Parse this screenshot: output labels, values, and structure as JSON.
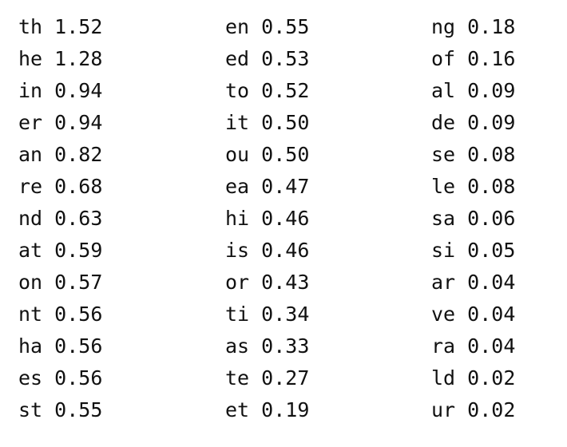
{
  "columns": [
    [
      {
        "bigram": "th",
        "freq": "1.52"
      },
      {
        "bigram": "he",
        "freq": "1.28"
      },
      {
        "bigram": "in",
        "freq": "0.94"
      },
      {
        "bigram": "er",
        "freq": "0.94"
      },
      {
        "bigram": "an",
        "freq": "0.82"
      },
      {
        "bigram": "re",
        "freq": "0.68"
      },
      {
        "bigram": "nd",
        "freq": "0.63"
      },
      {
        "bigram": "at",
        "freq": "0.59"
      },
      {
        "bigram": "on",
        "freq": "0.57"
      },
      {
        "bigram": "nt",
        "freq": "0.56"
      },
      {
        "bigram": "ha",
        "freq": "0.56"
      },
      {
        "bigram": "es",
        "freq": "0.56"
      },
      {
        "bigram": "st",
        "freq": "0.55"
      }
    ],
    [
      {
        "bigram": "en",
        "freq": "0.55"
      },
      {
        "bigram": "ed",
        "freq": "0.53"
      },
      {
        "bigram": "to",
        "freq": "0.52"
      },
      {
        "bigram": "it",
        "freq": "0.50"
      },
      {
        "bigram": "ou",
        "freq": "0.50"
      },
      {
        "bigram": "ea",
        "freq": "0.47"
      },
      {
        "bigram": "hi",
        "freq": "0.46"
      },
      {
        "bigram": "is",
        "freq": "0.46"
      },
      {
        "bigram": "or",
        "freq": "0.43"
      },
      {
        "bigram": "ti",
        "freq": "0.34"
      },
      {
        "bigram": "as",
        "freq": "0.33"
      },
      {
        "bigram": "te",
        "freq": "0.27"
      },
      {
        "bigram": "et",
        "freq": "0.19"
      }
    ],
    [
      {
        "bigram": "ng",
        "freq": "0.18"
      },
      {
        "bigram": "of",
        "freq": "0.16"
      },
      {
        "bigram": "al",
        "freq": "0.09"
      },
      {
        "bigram": "de",
        "freq": "0.09"
      },
      {
        "bigram": "se",
        "freq": "0.08"
      },
      {
        "bigram": "le",
        "freq": "0.08"
      },
      {
        "bigram": "sa",
        "freq": "0.06"
      },
      {
        "bigram": "si",
        "freq": "0.05"
      },
      {
        "bigram": "ar",
        "freq": "0.04"
      },
      {
        "bigram": "ve",
        "freq": "0.04"
      },
      {
        "bigram": "ra",
        "freq": "0.04"
      },
      {
        "bigram": "ld",
        "freq": "0.02"
      },
      {
        "bigram": "ur",
        "freq": "0.02"
      }
    ]
  ]
}
